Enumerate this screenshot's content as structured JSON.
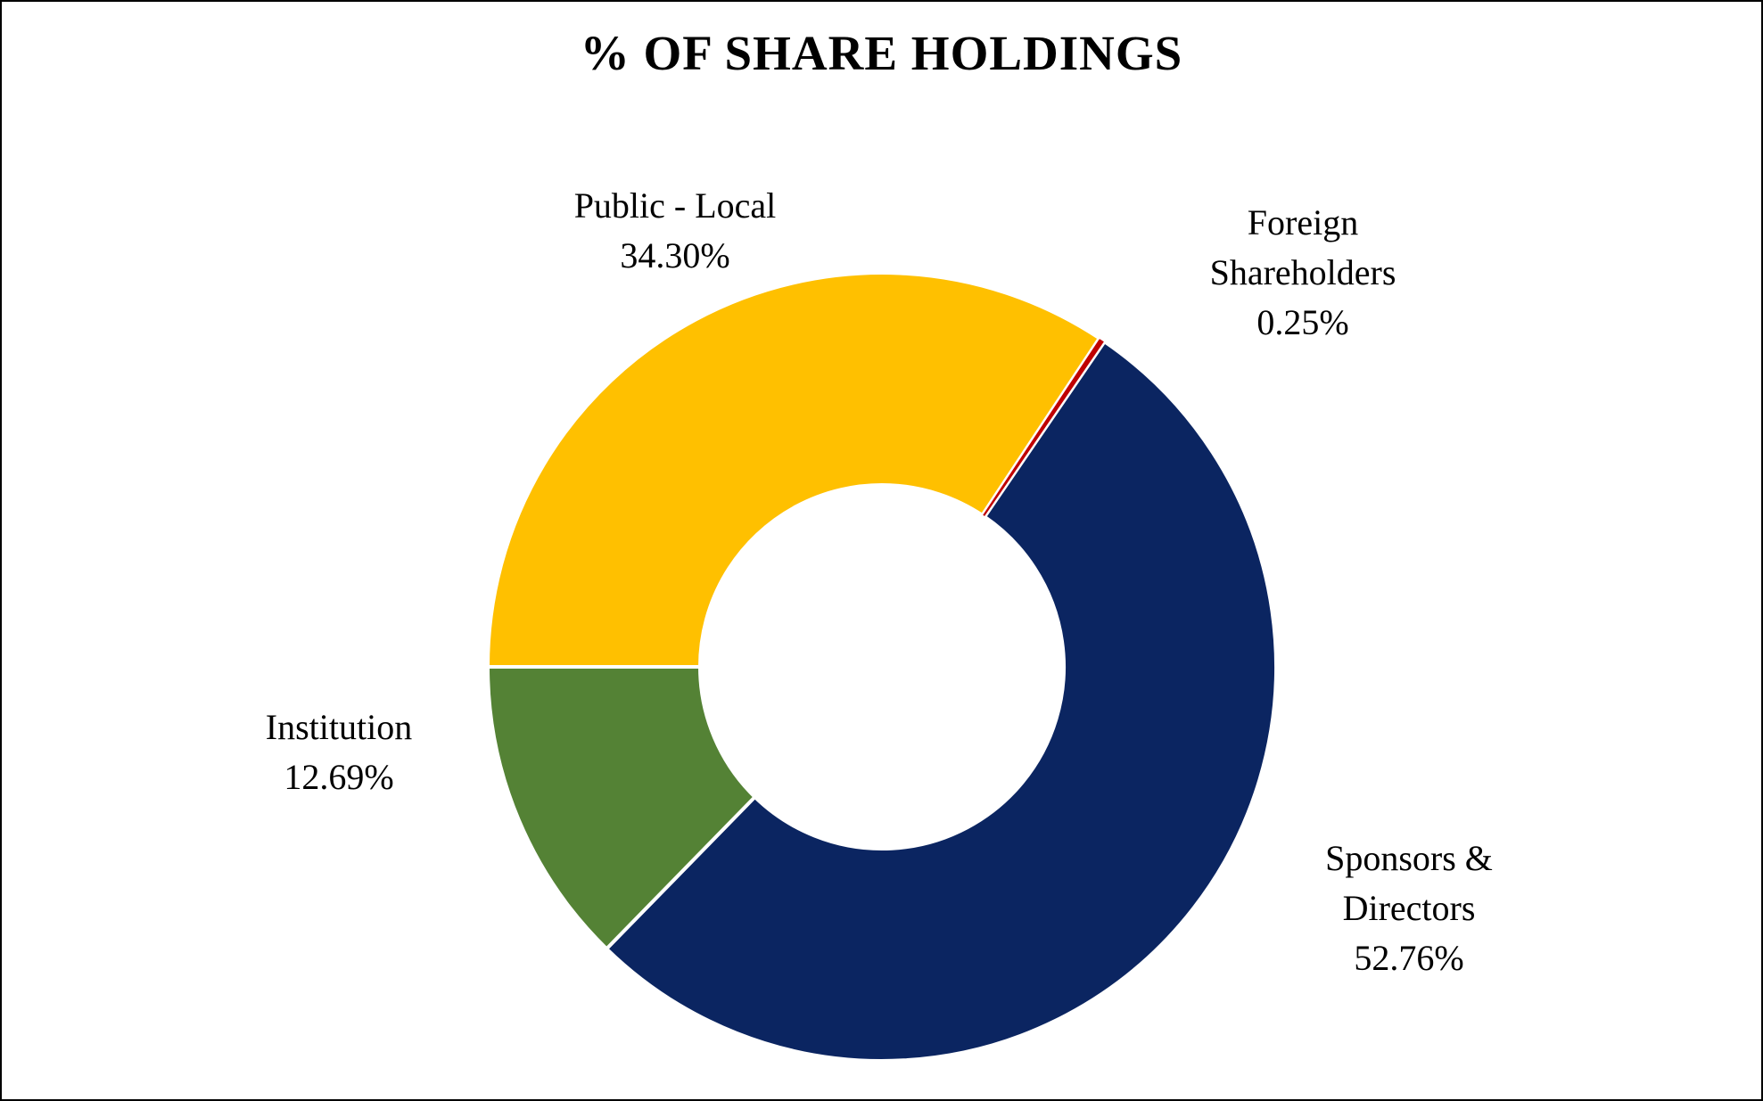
{
  "title": "% OF SHARE HOLDINGS",
  "chart_data": {
    "type": "pie",
    "subtype": "donut",
    "title": "% OF SHARE HOLDINGS",
    "legend_position": "none",
    "labels_position": "outside",
    "rotation_deg_clockwise_from_top": 270,
    "inner_radius_ratio": 0.4615,
    "background_color": "#ffffff",
    "separator_color": "#ffffff",
    "segments": [
      {
        "id": "public-local",
        "label": "Public - Local",
        "value": 34.3,
        "display": "34.30%",
        "color": "#FFC000"
      },
      {
        "id": "foreign-shareholders",
        "label": "Foreign Shareholders",
        "value": 0.25,
        "display": "0.25%",
        "color": "#C00000"
      },
      {
        "id": "sponsors-directors",
        "label": "Sponsors & Directors",
        "value": 52.76,
        "display": "52.76%",
        "color": "#0B2561"
      },
      {
        "id": "institution",
        "label": "Institution",
        "value": 12.69,
        "display": "12.69%",
        "color": "#548235"
      }
    ]
  },
  "callouts": [
    {
      "id": "public-local",
      "lines": [
        "Public - Local",
        "34.30%"
      ]
    },
    {
      "id": "foreign-shareholders",
      "lines": [
        "Foreign",
        "Shareholders",
        "0.25%"
      ]
    },
    {
      "id": "institution",
      "lines": [
        "Institution",
        "12.69%"
      ]
    },
    {
      "id": "sponsors-directors",
      "lines": [
        "Sponsors &",
        "Directors",
        "52.76%"
      ]
    }
  ]
}
